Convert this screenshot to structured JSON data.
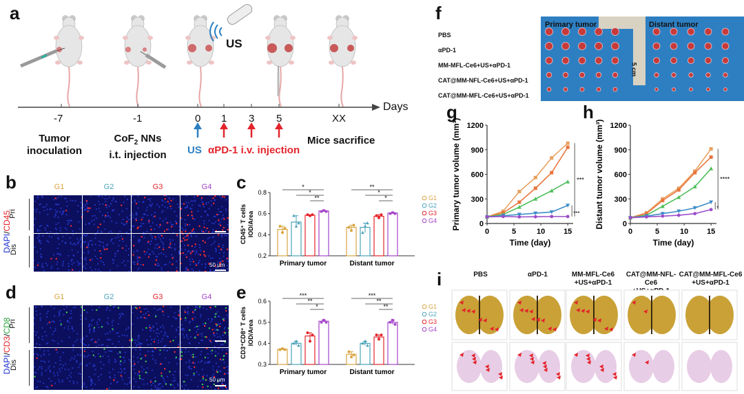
{
  "panels": {
    "a": "a",
    "b": "b",
    "c": "c",
    "d": "d",
    "e": "e",
    "f": "f",
    "g": "g",
    "h": "h",
    "i": "i"
  },
  "timeline": {
    "axis_label": "Days",
    "days": [
      "-7",
      "-1",
      "0",
      "1",
      "3",
      "5",
      "XX"
    ],
    "tumor_inoculation": [
      "Tumor",
      "inoculation"
    ],
    "cof2": [
      "CoF",
      "2",
      " NNs"
    ],
    "it_injection": "i.t. injection",
    "us_label": "US",
    "us_device_label": "US",
    "apd1_label": "αPD-1 i.v. injection",
    "mice_sacrifice": "Mice sacrifice",
    "colors": {
      "us_arrow": "#2b7fc1",
      "apd1_arrow": "#e3242b",
      "us_text": "#2b7fc1",
      "apd1_text": "#e3242b"
    }
  },
  "panel_b": {
    "groups": [
      "G1",
      "G2",
      "G3",
      "G4"
    ],
    "group_colors": [
      "#d9a441",
      "#4aa3b8",
      "#e3242b",
      "#a442c9"
    ],
    "rows": [
      "Pri",
      "Dis"
    ],
    "side_label": [
      "DAPI",
      "/",
      "CD45"
    ],
    "scale": "50 μm"
  },
  "panel_d": {
    "groups": [
      "G1",
      "G2",
      "G3",
      "G4"
    ],
    "rows": [
      "Pri",
      "Dis"
    ],
    "side_label": [
      "DAPI",
      "/",
      "CD3",
      "/",
      "CD8"
    ],
    "scale": "50 μm"
  },
  "chart_data": [
    {
      "type": "scatter",
      "panel": "c",
      "ylabel": "CD45⁺ T cells IOD/Area",
      "ylim": [
        0.2,
        0.8
      ],
      "yticks": [
        "0.2",
        "0.4",
        "0.6",
        "0.8"
      ],
      "categories": [
        "Primary tumor",
        "Distant tumor"
      ],
      "legend": [
        "G1",
        "G2",
        "G3",
        "G4"
      ],
      "series": [
        {
          "name": "G1",
          "values": [
            0.45,
            0.47
          ]
        },
        {
          "name": "G2",
          "values": [
            0.52,
            0.47
          ]
        },
        {
          "name": "G3",
          "values": [
            0.585,
            0.575
          ]
        },
        {
          "name": "G4",
          "values": [
            0.625,
            0.605
          ]
        }
      ],
      "points": [
        [
          [
            0.48,
            0.42,
            0.46
          ],
          [
            0.47,
            0.44,
            0.49
          ]
        ],
        [
          [
            0.58,
            0.48,
            0.51
          ],
          [
            0.42,
            0.48,
            0.51
          ]
        ],
        [
          [
            0.59,
            0.58,
            0.59
          ],
          [
            0.58,
            0.56,
            0.59
          ]
        ],
        [
          [
            0.62,
            0.63,
            0.62
          ],
          [
            0.6,
            0.61,
            0.6
          ]
        ]
      ],
      "significance": {
        "primary": [
          "*",
          "*",
          "**"
        ],
        "distant": [
          "**",
          "*",
          "*",
          "***"
        ]
      }
    },
    {
      "type": "scatter",
      "panel": "e",
      "ylabel": "CD3⁺CD8⁺ T cells IOD/Area",
      "ylim": [
        0.3,
        0.6
      ],
      "yticks": [
        "0.3",
        "0.4",
        "0.5",
        "0.6"
      ],
      "categories": [
        "Primary tumor",
        "Distant tumor"
      ],
      "legend": [
        "G1",
        "G2",
        "G3",
        "G4"
      ],
      "series": [
        {
          "name": "G1",
          "values": [
            0.372,
            0.348
          ]
        },
        {
          "name": "G2",
          "values": [
            0.4,
            0.4
          ]
        },
        {
          "name": "G3",
          "values": [
            0.435,
            0.43
          ]
        },
        {
          "name": "G4",
          "values": [
            0.505,
            0.5
          ]
        }
      ],
      "points": [
        [
          [
            0.37,
            0.375,
            0.37
          ],
          [
            0.36,
            0.335,
            0.345
          ]
        ],
        [
          [
            0.4,
            0.41,
            0.39
          ],
          [
            0.4,
            0.41,
            0.39
          ]
        ],
        [
          [
            0.45,
            0.41,
            0.44
          ],
          [
            0.44,
            0.42,
            0.44
          ]
        ],
        [
          [
            0.5,
            0.51,
            0.5
          ],
          [
            0.5,
            0.51,
            0.49
          ]
        ]
      ],
      "significance": {
        "primary": [
          "***",
          "**",
          "*"
        ],
        "distant": [
          "***",
          "**",
          "**"
        ]
      }
    },
    {
      "type": "line",
      "panel": "g",
      "ylabel": "Primary tumor volume (mm³)",
      "xlabel": "Time (day)",
      "x": [
        0,
        3,
        6,
        9,
        12,
        15
      ],
      "xticks": [
        "0",
        "5",
        "10",
        "15"
      ],
      "yticks": [
        "0",
        "300",
        "600",
        "900",
        "1200"
      ],
      "ylim": [
        0,
        1200
      ],
      "xlim": [
        0,
        16
      ],
      "series": [
        {
          "values": [
            80,
            150,
            390,
            560,
            800,
            980
          ],
          "color": "#e8a05f"
        },
        {
          "values": [
            80,
            130,
            260,
            430,
            620,
            930
          ],
          "color": "#e8753d"
        },
        {
          "values": [
            80,
            110,
            200,
            300,
            400,
            510
          ],
          "color": "#4dbd5a"
        },
        {
          "values": [
            80,
            95,
            110,
            125,
            140,
            220
          ],
          "color": "#3c8dc8"
        },
        {
          "values": [
            80,
            85,
            80,
            82,
            85,
            85
          ],
          "color": "#9b4cc9"
        }
      ],
      "significance": [
        "***",
        "***"
      ]
    },
    {
      "type": "line",
      "panel": "h",
      "ylabel": "Distant tumor volume (mm³)",
      "xlabel": "Time (day)",
      "x": [
        0,
        3,
        6,
        9,
        12,
        15
      ],
      "xticks": [
        "0",
        "5",
        "10",
        "15"
      ],
      "yticks": [
        "0",
        "300",
        "600",
        "900",
        "1200"
      ],
      "ylim": [
        0,
        1200
      ],
      "xlim": [
        0,
        16
      ],
      "series": [
        {
          "values": [
            70,
            130,
            300,
            430,
            640,
            910
          ],
          "color": "#e8a05f"
        },
        {
          "values": [
            70,
            120,
            280,
            410,
            620,
            810
          ],
          "color": "#e8753d"
        },
        {
          "values": [
            70,
            100,
            210,
            320,
            450,
            670
          ],
          "color": "#4dbd5a"
        },
        {
          "values": [
            70,
            90,
            120,
            150,
            190,
            260
          ],
          "color": "#3c8dc8"
        },
        {
          "values": [
            70,
            80,
            90,
            100,
            120,
            170
          ],
          "color": "#9b4cc9"
        }
      ],
      "significance": [
        "****",
        "*"
      ]
    }
  ],
  "panel_f": {
    "rows": [
      "PBS",
      "αPD-1",
      "MM-MFL-Ce6+US+αPD-1",
      "CAT@MM-NFL-Ce6+US+αPD-1",
      "CAT@MM-MFL-Ce6+US+αPD-1"
    ],
    "primary": "Primary tumor",
    "distant": "Distant tumor",
    "ruler": "5 cm",
    "bg": "#2e7fc2"
  },
  "panel_i": {
    "cols": [
      [
        "PBS"
      ],
      [
        "αPD-1"
      ],
      [
        "MM-MFL-Ce6",
        "+US+αPD-1"
      ],
      [
        "CAT@MM-NFL-Ce6",
        "+US+αPD-1"
      ],
      [
        "CAT@MM-MFL-Ce6",
        "+US+αPD-1"
      ]
    ]
  }
}
